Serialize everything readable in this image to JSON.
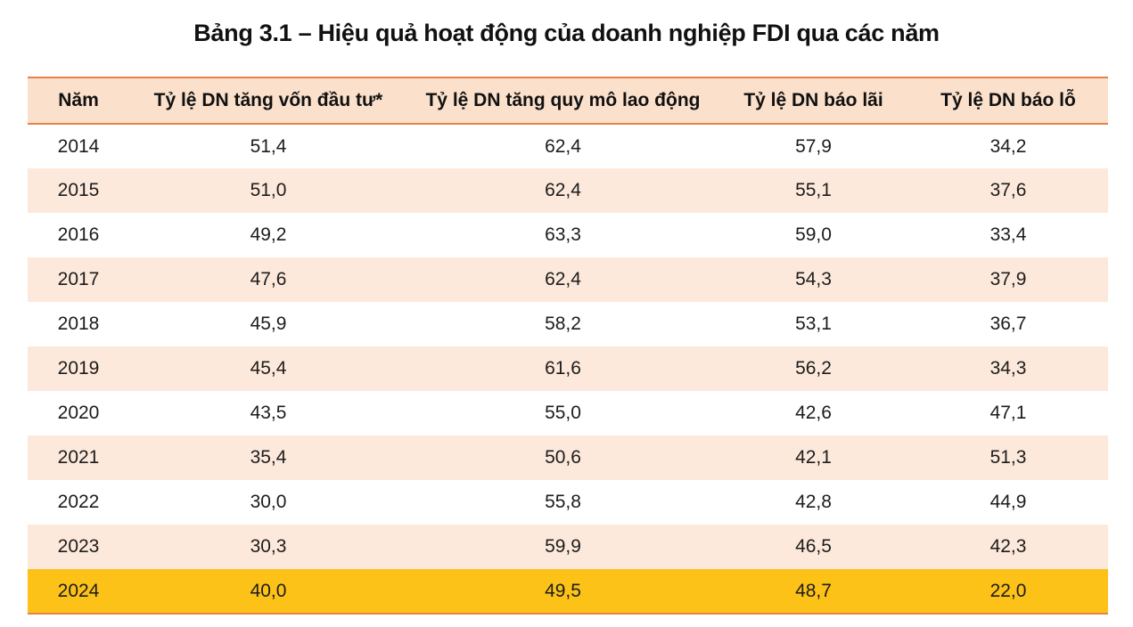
{
  "title": "Bảng 3.1 – Hiệu quả hoạt động của doanh nghiệp FDI qua các năm",
  "colors": {
    "header_bg": "#fbe1cc",
    "stripe_bg": "#fde9db",
    "highlight_bg": "#fdc218",
    "rule": "#e5824a"
  },
  "table": {
    "headers": [
      "Năm",
      "Tỷ lệ DN tăng vốn đầu tư*",
      "Tỷ lệ DN tăng quy mô lao động",
      "Tỷ lệ DN báo lãi",
      "Tỷ lệ DN báo lỗ"
    ],
    "rows": [
      [
        "2014",
        "51,4",
        "62,4",
        "57,9",
        "34,2"
      ],
      [
        "2015",
        "51,0",
        "62,4",
        "55,1",
        "37,6"
      ],
      [
        "2016",
        "49,2",
        "63,3",
        "59,0",
        "33,4"
      ],
      [
        "2017",
        "47,6",
        "62,4",
        "54,3",
        "37,9"
      ],
      [
        "2018",
        "45,9",
        "58,2",
        "53,1",
        "36,7"
      ],
      [
        "2019",
        "45,4",
        "61,6",
        "56,2",
        "34,3"
      ],
      [
        "2020",
        "43,5",
        "55,0",
        "42,6",
        "47,1"
      ],
      [
        "2021",
        "35,4",
        "50,6",
        "42,1",
        "51,3"
      ],
      [
        "2022",
        "30,0",
        "55,8",
        "42,8",
        "44,9"
      ],
      [
        "2023",
        "30,3",
        "59,9",
        "46,5",
        "42,3"
      ],
      [
        "2024",
        "40,0",
        "49,5",
        "48,7",
        "22,0"
      ]
    ]
  }
}
